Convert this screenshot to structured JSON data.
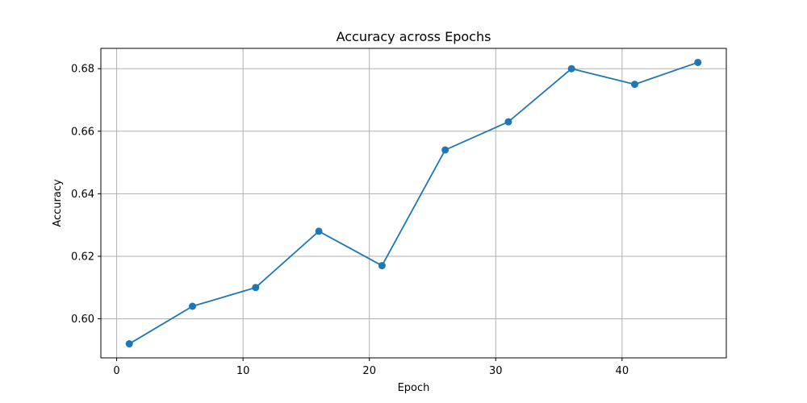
{
  "chart_data": {
    "type": "line",
    "title": "Accuracy across Epochs",
    "xlabel": "Epoch",
    "ylabel": "Accuracy",
    "xlim": [
      -1.25,
      48.25
    ],
    "ylim": [
      0.5875,
      0.6865
    ],
    "xticks": [
      0,
      10,
      20,
      30,
      40
    ],
    "xtick_labels": [
      "0",
      "10",
      "20",
      "30",
      "40"
    ],
    "yticks": [
      0.6,
      0.62,
      0.64,
      0.66,
      0.68
    ],
    "ytick_labels": [
      "0.60",
      "0.62",
      "0.64",
      "0.66",
      "0.68"
    ],
    "grid": true,
    "series": [
      {
        "color": "#1f77b4",
        "marker": "circle",
        "x": [
          1,
          6,
          11,
          16,
          21,
          26,
          31,
          36,
          41,
          46
        ],
        "y": [
          0.592,
          0.604,
          0.61,
          0.628,
          0.617,
          0.654,
          0.663,
          0.68,
          0.675,
          0.682
        ]
      }
    ]
  }
}
